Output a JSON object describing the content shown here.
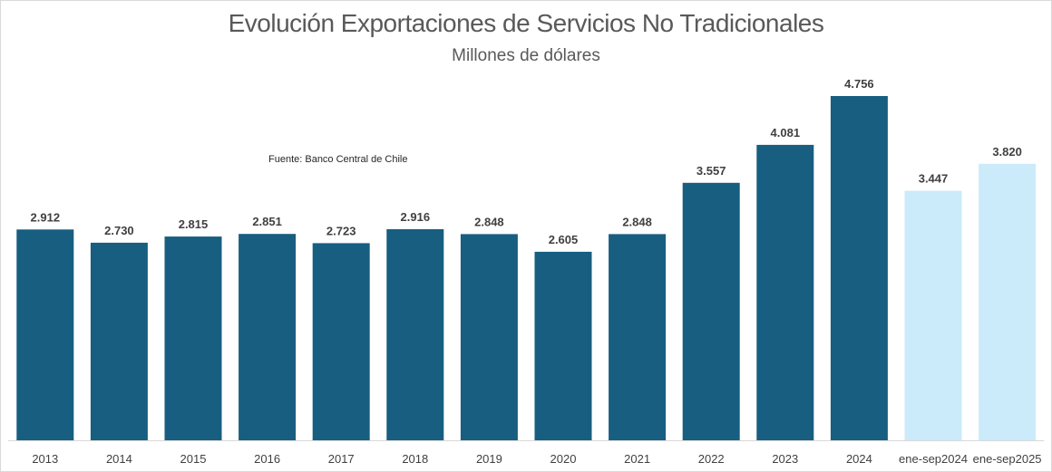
{
  "chart_data": {
    "type": "bar",
    "title": "Evolución Exportaciones de Servicios No Tradicionales",
    "subtitle": "Millones de dólares",
    "annotation": "Fuente: Banco Central de Chile",
    "xlabel": "",
    "ylabel": "",
    "ylim": [
      0,
      4756
    ],
    "grid": false,
    "legend": "none",
    "categories": [
      "2013",
      "2014",
      "2015",
      "2016",
      "2017",
      "2018",
      "2019",
      "2020",
      "2021",
      "2022",
      "2023",
      "2024",
      "ene-sep2024",
      "ene-sep2025"
    ],
    "values": [
      2912,
      2730,
      2815,
      2851,
      2723,
      2916,
      2848,
      2605,
      2848,
      3557,
      4081,
      4756,
      3447,
      3820
    ],
    "value_labels": [
      "2.912",
      "2.730",
      "2.815",
      "2.851",
      "2.723",
      "2.916",
      "2.848",
      "2.605",
      "2.848",
      "3.557",
      "4.081",
      "4.756",
      "3.447",
      "3.820"
    ],
    "colors": {
      "annual": "#175e80",
      "partial_period": "#cbebfa",
      "axis": "#d9d9d9"
    },
    "bar_color_keys": [
      "annual",
      "annual",
      "annual",
      "annual",
      "annual",
      "annual",
      "annual",
      "annual",
      "annual",
      "annual",
      "annual",
      "annual",
      "partial_period",
      "partial_period"
    ]
  }
}
